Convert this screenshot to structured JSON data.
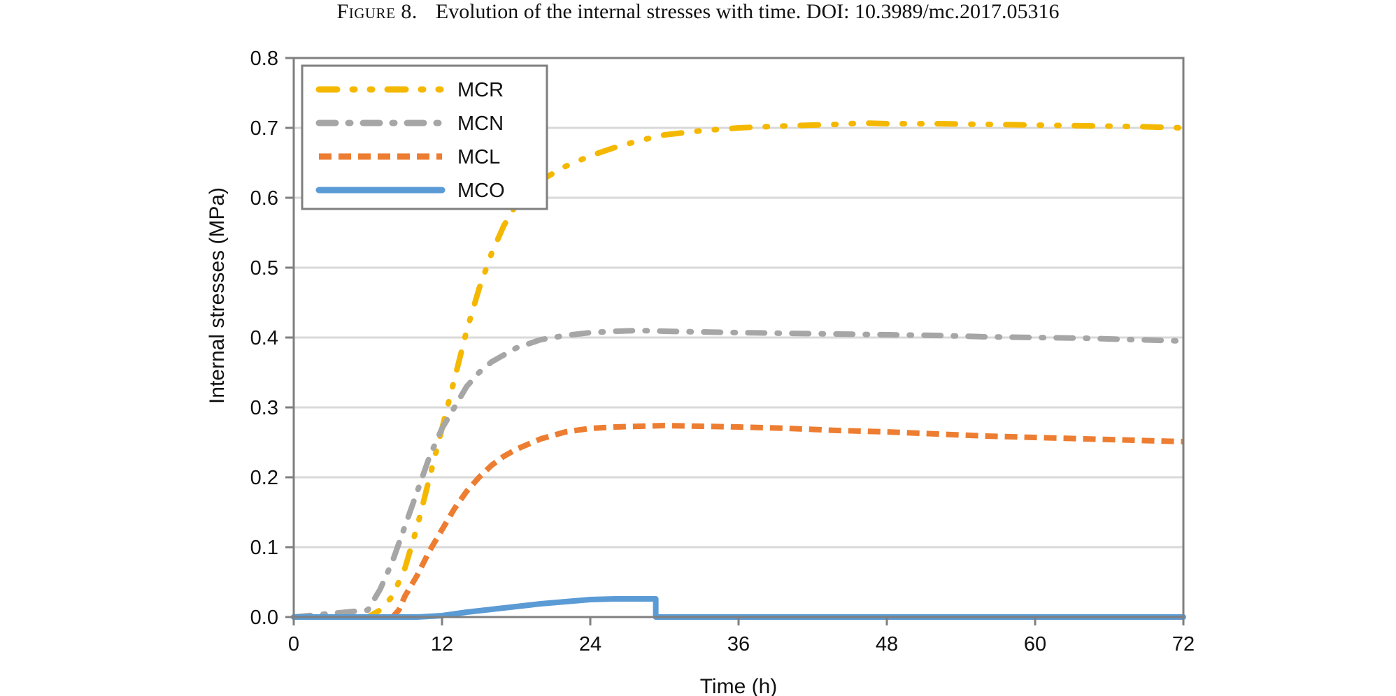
{
  "caption": {
    "label": "Figure 8.",
    "text": "Evolution of the internal stresses with time. DOI: 10.3989/mc.2017.05316"
  },
  "colors": {
    "MCR": "#F5B800",
    "MCN": "#A6A6A6",
    "MCL": "#ED7D31",
    "MCO": "#5B9BD5",
    "grid": "#D9D9D9",
    "frame": "#7F7F7F"
  },
  "chart_data": {
    "type": "line",
    "title": "",
    "xlabel": "Time (h)",
    "ylabel": "Internal stresses (MPa)",
    "xlim": [
      0,
      72
    ],
    "ylim": [
      0,
      0.8
    ],
    "xticks": [
      0,
      12,
      24,
      36,
      48,
      60,
      72
    ],
    "xtick_labels": [
      "0",
      "12",
      "24",
      "36",
      "48",
      "60",
      "72"
    ],
    "yticks": [
      0,
      0.1,
      0.2,
      0.3,
      0.4,
      0.5,
      0.6,
      0.7,
      0.8
    ],
    "ytick_labels": [
      "0.0",
      "0.1",
      "0.2",
      "0.3",
      "0.4",
      "0.5",
      "0.6",
      "0.7",
      "0.8"
    ],
    "grid": "horizontal",
    "legend": "top-left",
    "series": [
      {
        "name": "MCR",
        "dash": "long-dot-dot",
        "x": [
          0,
          6,
          7,
          8,
          9,
          10,
          11,
          12,
          13,
          14,
          15,
          16,
          17,
          18,
          19,
          20,
          21,
          22,
          24,
          26,
          28,
          30,
          33,
          36,
          40,
          44,
          46,
          48,
          52,
          56,
          60,
          64,
          68,
          72
        ],
        "y": [
          0,
          0,
          0.01,
          0.03,
          0.07,
          0.13,
          0.2,
          0.27,
          0.34,
          0.41,
          0.47,
          0.52,
          0.56,
          0.59,
          0.61,
          0.625,
          0.635,
          0.645,
          0.66,
          0.672,
          0.682,
          0.69,
          0.696,
          0.7,
          0.703,
          0.705,
          0.707,
          0.706,
          0.706,
          0.705,
          0.704,
          0.703,
          0.702,
          0.7
        ]
      },
      {
        "name": "MCN",
        "dash": "dash-dot",
        "x": [
          0,
          6,
          7,
          8,
          9,
          10,
          11,
          12,
          13,
          14,
          15,
          16,
          18,
          20,
          22,
          24,
          26,
          28,
          30,
          33,
          36,
          40,
          44,
          48,
          52,
          56,
          60,
          64,
          68,
          72
        ],
        "y": [
          0,
          0.01,
          0.04,
          0.08,
          0.13,
          0.18,
          0.23,
          0.27,
          0.3,
          0.33,
          0.35,
          0.365,
          0.385,
          0.397,
          0.403,
          0.407,
          0.409,
          0.41,
          0.409,
          0.408,
          0.407,
          0.406,
          0.405,
          0.404,
          0.403,
          0.401,
          0.4,
          0.399,
          0.397,
          0.395
        ]
      },
      {
        "name": "MCL",
        "dash": "dashed",
        "x": [
          0,
          8,
          8.5,
          9,
          10,
          11,
          12,
          13,
          14,
          15,
          16,
          17,
          18,
          20,
          22,
          24,
          26,
          28,
          30,
          33,
          36,
          40,
          44,
          48,
          52,
          56,
          60,
          64,
          68,
          72
        ],
        "y": [
          0,
          0,
          0.01,
          0.03,
          0.06,
          0.095,
          0.125,
          0.155,
          0.18,
          0.2,
          0.217,
          0.23,
          0.24,
          0.255,
          0.265,
          0.27,
          0.272,
          0.273,
          0.274,
          0.273,
          0.272,
          0.27,
          0.267,
          0.265,
          0.262,
          0.259,
          0.257,
          0.255,
          0.253,
          0.251
        ]
      },
      {
        "name": "MCO",
        "dash": "solid",
        "x": [
          0,
          10,
          12,
          14,
          16,
          18,
          20,
          22,
          24,
          26,
          28,
          29.3,
          29.3,
          36,
          48,
          60,
          72
        ],
        "y": [
          0,
          0,
          0.002,
          0.007,
          0.011,
          0.015,
          0.019,
          0.022,
          0.025,
          0.026,
          0.026,
          0.026,
          0,
          0,
          0,
          0,
          0
        ]
      }
    ]
  }
}
